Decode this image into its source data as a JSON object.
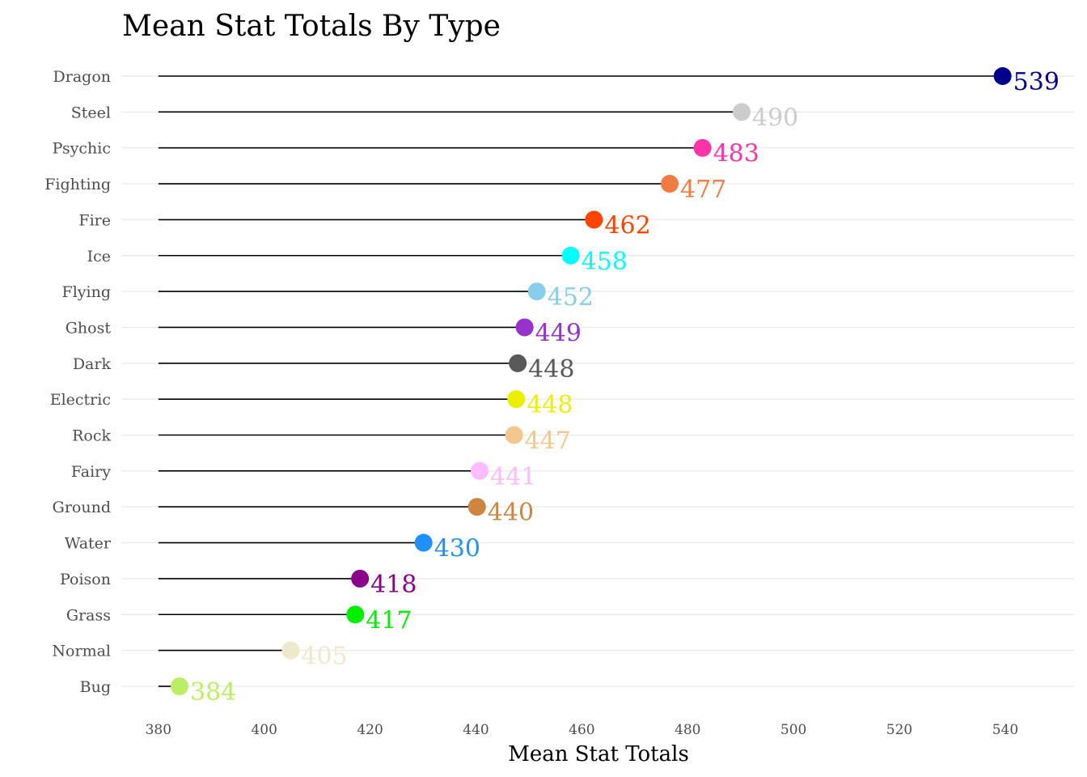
{
  "chart_data": {
    "type": "lollipop",
    "title": "Mean Stat Totals By Type",
    "xlabel": "Mean Stat Totals",
    "ylabel": "",
    "xlim": [
      373,
      553
    ],
    "baseline": 380,
    "xticks": [
      380,
      400,
      420,
      440,
      460,
      480,
      500,
      520,
      540
    ],
    "grid": "horizontal",
    "legend": "none",
    "stem_color": "#000000",
    "gridline_color": "#ebebeb",
    "points": [
      {
        "category": "Dragon",
        "value": 539.5,
        "label": "539",
        "color": "#00008b"
      },
      {
        "category": "Steel",
        "value": 490.2,
        "label": "490",
        "color": "#cccccc"
      },
      {
        "category": "Psychic",
        "value": 482.8,
        "label": "483",
        "color": "#ff33aa"
      },
      {
        "category": "Fighting",
        "value": 476.6,
        "label": "477",
        "color": "#f07c43"
      },
      {
        "category": "Fire",
        "value": 462.3,
        "label": "462",
        "color": "#ff4500"
      },
      {
        "category": "Ice",
        "value": 457.9,
        "label": "458",
        "color": "#00ffff"
      },
      {
        "category": "Flying",
        "value": 451.5,
        "label": "452",
        "color": "#87ceeb"
      },
      {
        "category": "Ghost",
        "value": 449.2,
        "label": "449",
        "color": "#9932cc"
      },
      {
        "category": "Dark",
        "value": 447.9,
        "label": "448",
        "color": "#595959"
      },
      {
        "category": "Electric",
        "value": 447.6,
        "label": "448",
        "color": "#eeee00"
      },
      {
        "category": "Rock",
        "value": 447.2,
        "label": "447",
        "color": "#f4c78e"
      },
      {
        "category": "Fairy",
        "value": 440.7,
        "label": "441",
        "color": "#ffbbff"
      },
      {
        "category": "Ground",
        "value": 440.2,
        "label": "440",
        "color": "#cd853f"
      },
      {
        "category": "Water",
        "value": 430.1,
        "label": "430",
        "color": "#1e90ff"
      },
      {
        "category": "Poison",
        "value": 418.1,
        "label": "418",
        "color": "#8b008b"
      },
      {
        "category": "Grass",
        "value": 417.2,
        "label": "417",
        "color": "#00ee00"
      },
      {
        "category": "Normal",
        "value": 405.0,
        "label": "405",
        "color": "#eee8cd"
      },
      {
        "category": "Bug",
        "value": 384.0,
        "label": "384",
        "color": "#bbee66"
      }
    ]
  }
}
